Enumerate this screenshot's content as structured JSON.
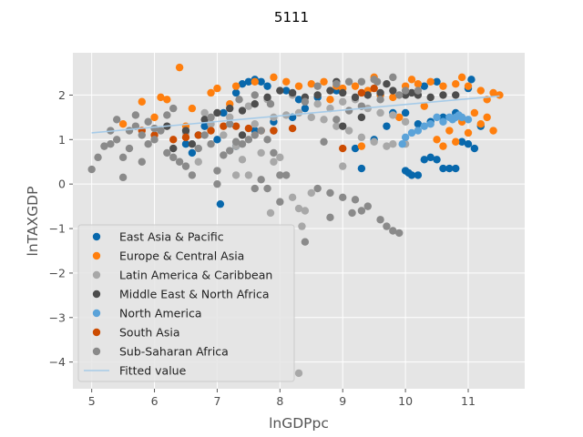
{
  "chart_data": {
    "type": "scatter",
    "title": "5111",
    "xlabel": "lnGDPpc",
    "ylabel": "lnTAXGDP",
    "xlim": [
      4.7,
      11.9
    ],
    "ylim": [
      -4.6,
      2.95
    ],
    "xticks": [
      5,
      6,
      7,
      8,
      9,
      10,
      11
    ],
    "yticks": [
      -4,
      -3,
      -2,
      -1,
      0,
      1,
      2
    ],
    "ytick_labels": [
      "−4",
      "−3",
      "−2",
      "−1",
      "0",
      "1",
      "2"
    ],
    "grid": true,
    "legend_position": "lower-left",
    "style": "ggplot",
    "series": [
      {
        "name": "East Asia & Pacific",
        "color": "#0868ac",
        "points": [
          [
            6.8,
            1.3
          ],
          [
            7.1,
            1.6
          ],
          [
            7.3,
            2.05
          ],
          [
            7.4,
            2.25
          ],
          [
            7.5,
            2.3
          ],
          [
            7.6,
            2.35
          ],
          [
            7.7,
            2.3
          ],
          [
            7.8,
            2.2
          ],
          [
            8.1,
            2.1
          ],
          [
            8.3,
            1.9
          ],
          [
            6.5,
            0.9
          ],
          [
            6.6,
            0.7
          ],
          [
            6.7,
            1.1
          ],
          [
            7.0,
            1.0
          ],
          [
            7.3,
            0.85
          ],
          [
            7.6,
            1.2
          ],
          [
            7.9,
            1.4
          ],
          [
            8.2,
            1.5
          ],
          [
            8.4,
            1.7
          ],
          [
            8.6,
            1.95
          ],
          [
            8.9,
            2.1
          ],
          [
            9.2,
            0.8
          ],
          [
            9.3,
            0.35
          ],
          [
            9.6,
            2.0
          ],
          [
            9.8,
            1.6
          ],
          [
            10.0,
            0.3
          ],
          [
            10.05,
            0.25
          ],
          [
            10.1,
            0.2
          ],
          [
            10.2,
            0.2
          ],
          [
            10.3,
            0.55
          ],
          [
            10.4,
            0.6
          ],
          [
            10.5,
            0.55
          ],
          [
            10.6,
            0.35
          ],
          [
            10.7,
            0.35
          ],
          [
            10.8,
            0.35
          ],
          [
            10.9,
            0.95
          ],
          [
            11.0,
            0.9
          ],
          [
            11.1,
            0.8
          ],
          [
            10.2,
            1.35
          ],
          [
            10.4,
            1.4
          ],
          [
            10.6,
            1.5
          ],
          [
            10.8,
            1.6
          ],
          [
            11.0,
            2.15
          ],
          [
            11.05,
            2.35
          ],
          [
            10.5,
            2.3
          ],
          [
            10.3,
            2.2
          ],
          [
            9.5,
            1.0
          ],
          [
            9.7,
            1.3
          ],
          [
            10.0,
            1.6
          ],
          [
            11.2,
            1.3
          ],
          [
            7.05,
            -0.45
          ]
        ]
      },
      {
        "name": "Europe & Central Asia",
        "color": "#ff7f0e",
        "points": [
          [
            5.5,
            1.35
          ],
          [
            5.8,
            1.85
          ],
          [
            6.0,
            1.5
          ],
          [
            6.1,
            1.95
          ],
          [
            6.2,
            1.9
          ],
          [
            6.4,
            2.62
          ],
          [
            6.5,
            1.3
          ],
          [
            6.6,
            1.7
          ],
          [
            6.9,
            2.05
          ],
          [
            7.0,
            2.15
          ],
          [
            7.3,
            2.2
          ],
          [
            7.6,
            2.3
          ],
          [
            7.9,
            2.4
          ],
          [
            8.1,
            2.3
          ],
          [
            8.3,
            2.2
          ],
          [
            8.5,
            2.25
          ],
          [
            8.7,
            2.3
          ],
          [
            8.9,
            2.2
          ],
          [
            9.0,
            2.15
          ],
          [
            9.2,
            2.2
          ],
          [
            9.4,
            2.1
          ],
          [
            9.6,
            2.0
          ],
          [
            9.8,
            1.95
          ],
          [
            10.0,
            2.2
          ],
          [
            10.2,
            2.25
          ],
          [
            10.4,
            2.3
          ],
          [
            10.6,
            2.2
          ],
          [
            10.8,
            2.25
          ],
          [
            11.0,
            2.2
          ],
          [
            11.2,
            2.1
          ],
          [
            11.4,
            2.05
          ],
          [
            11.5,
            2.0
          ],
          [
            11.3,
            1.9
          ],
          [
            11.1,
            1.6
          ],
          [
            10.9,
            1.4
          ],
          [
            10.7,
            1.2
          ],
          [
            10.5,
            1.0
          ],
          [
            10.6,
            0.85
          ],
          [
            10.8,
            0.95
          ],
          [
            11.0,
            1.15
          ],
          [
            11.2,
            1.35
          ],
          [
            11.4,
            1.2
          ],
          [
            11.3,
            1.5
          ],
          [
            9.3,
            0.85
          ],
          [
            9.9,
            1.5
          ],
          [
            10.3,
            1.75
          ],
          [
            8.8,
            1.9
          ],
          [
            9.5,
            2.4
          ],
          [
            10.1,
            2.35
          ],
          [
            10.9,
            2.4
          ],
          [
            7.2,
            1.8
          ]
        ]
      },
      {
        "name": "Latin America & Caribbean",
        "color": "#a8a8a8",
        "points": [
          [
            6.5,
            1.15
          ],
          [
            6.9,
            1.35
          ],
          [
            7.1,
            1.1
          ],
          [
            7.3,
            0.85
          ],
          [
            7.6,
            1.35
          ],
          [
            7.9,
            1.5
          ],
          [
            8.1,
            1.55
          ],
          [
            8.3,
            1.6
          ],
          [
            8.5,
            1.5
          ],
          [
            8.7,
            1.45
          ],
          [
            8.9,
            1.3
          ],
          [
            9.1,
            1.2
          ],
          [
            9.3,
            1.05
          ],
          [
            9.5,
            0.95
          ],
          [
            9.7,
            0.85
          ],
          [
            9.4,
            1.7
          ],
          [
            9.6,
            1.6
          ],
          [
            9.8,
            1.55
          ],
          [
            10.0,
            1.4
          ],
          [
            8.8,
            1.7
          ],
          [
            8.6,
            1.8
          ],
          [
            8.4,
            1.95
          ],
          [
            8.2,
            2.0
          ],
          [
            7.8,
            1.9
          ],
          [
            7.5,
            1.75
          ],
          [
            7.2,
            1.5
          ],
          [
            6.8,
            1.6
          ],
          [
            9.0,
            1.85
          ],
          [
            9.2,
            1.9
          ],
          [
            7.4,
            0.55
          ],
          [
            7.7,
            0.7
          ],
          [
            7.9,
            0.5
          ],
          [
            8.0,
            0.6
          ],
          [
            9.0,
            0.4
          ],
          [
            8.3,
            -0.55
          ],
          [
            8.4,
            -0.6
          ],
          [
            7.85,
            -0.65
          ],
          [
            8.35,
            -0.95
          ],
          [
            8.5,
            -0.2
          ],
          [
            8.2,
            -0.3
          ],
          [
            7.5,
            0.2
          ],
          [
            7.3,
            0.2
          ],
          [
            6.7,
            0.5
          ],
          [
            9.8,
            0.9
          ],
          [
            10.0,
            0.9
          ],
          [
            8.3,
            -4.25
          ]
        ]
      },
      {
        "name": "Middle East & North Africa",
        "color": "#4d4d4d",
        "points": [
          [
            6.2,
            1.3
          ],
          [
            6.5,
            1.2
          ],
          [
            6.8,
            1.45
          ],
          [
            7.0,
            1.6
          ],
          [
            7.2,
            1.7
          ],
          [
            7.4,
            1.65
          ],
          [
            7.6,
            1.8
          ],
          [
            7.8,
            1.95
          ],
          [
            8.0,
            2.1
          ],
          [
            8.2,
            2.05
          ],
          [
            8.4,
            1.95
          ],
          [
            8.6,
            2.0
          ],
          [
            8.8,
            2.1
          ],
          [
            9.0,
            2.05
          ],
          [
            9.2,
            1.95
          ],
          [
            9.4,
            2.0
          ],
          [
            9.6,
            2.05
          ],
          [
            9.8,
            2.1
          ],
          [
            10.0,
            2.0
          ],
          [
            10.2,
            2.0
          ],
          [
            10.4,
            1.95
          ],
          [
            10.6,
            2.0
          ],
          [
            10.8,
            2.0
          ],
          [
            9.0,
            1.3
          ],
          [
            9.3,
            1.5
          ],
          [
            7.9,
            1.2
          ],
          [
            7.4,
            1.1
          ],
          [
            6.6,
            0.9
          ],
          [
            6.3,
            0.8
          ],
          [
            8.9,
            2.3
          ],
          [
            9.7,
            2.25
          ],
          [
            10.1,
            2.05
          ]
        ]
      },
      {
        "name": "North America",
        "color": "#5ba3d9",
        "points": [
          [
            9.95,
            0.9
          ],
          [
            10.0,
            1.05
          ],
          [
            10.2,
            1.2
          ],
          [
            10.4,
            1.35
          ],
          [
            10.6,
            1.4
          ],
          [
            10.7,
            1.5
          ],
          [
            10.75,
            1.45
          ],
          [
            10.8,
            1.5
          ],
          [
            10.85,
            1.55
          ],
          [
            10.9,
            1.5
          ],
          [
            11.0,
            1.45
          ],
          [
            10.5,
            1.5
          ],
          [
            10.3,
            1.3
          ],
          [
            10.1,
            1.15
          ]
        ]
      },
      {
        "name": "South Asia",
        "color": "#cc4c02",
        "points": [
          [
            5.8,
            1.2
          ],
          [
            6.0,
            1.1
          ],
          [
            6.3,
            1.0
          ],
          [
            6.5,
            1.05
          ],
          [
            6.7,
            1.1
          ],
          [
            6.9,
            1.2
          ],
          [
            7.1,
            1.3
          ],
          [
            7.3,
            1.3
          ],
          [
            7.5,
            1.25
          ],
          [
            7.7,
            1.2
          ],
          [
            7.9,
            1.2
          ],
          [
            8.2,
            1.25
          ],
          [
            9.0,
            0.8
          ],
          [
            9.3,
            2.05
          ],
          [
            9.5,
            2.15
          ]
        ]
      },
      {
        "name": "Sub-Saharan Africa",
        "color": "#8a8a8a",
        "points": [
          [
            5.0,
            0.33
          ],
          [
            5.1,
            0.6
          ],
          [
            5.2,
            0.85
          ],
          [
            5.3,
            0.9
          ],
          [
            5.4,
            1.0
          ],
          [
            5.5,
            0.6
          ],
          [
            5.5,
            0.15
          ],
          [
            5.6,
            1.2
          ],
          [
            5.7,
            1.3
          ],
          [
            5.8,
            1.1
          ],
          [
            5.9,
            0.9
          ],
          [
            6.0,
            1.0
          ],
          [
            6.1,
            1.2
          ],
          [
            6.2,
            0.7
          ],
          [
            6.3,
            0.6
          ],
          [
            6.4,
            0.5
          ],
          [
            6.5,
            0.4
          ],
          [
            6.6,
            0.2
          ],
          [
            6.7,
            0.8
          ],
          [
            6.8,
            1.1
          ],
          [
            6.9,
            0.9
          ],
          [
            7.0,
            0.3
          ],
          [
            7.0,
            0.0
          ],
          [
            7.1,
            0.65
          ],
          [
            7.2,
            0.75
          ],
          [
            7.3,
            0.95
          ],
          [
            7.4,
            0.9
          ],
          [
            7.5,
            1.0
          ],
          [
            7.6,
            1.1
          ],
          [
            7.7,
            1.2
          ],
          [
            7.8,
            1.0
          ],
          [
            7.9,
            0.7
          ],
          [
            8.0,
            0.2
          ],
          [
            8.1,
            0.2
          ],
          [
            7.7,
            0.1
          ],
          [
            7.6,
            -0.1
          ],
          [
            7.8,
            -0.1
          ],
          [
            8.6,
            -0.1
          ],
          [
            8.8,
            -0.2
          ],
          [
            9.0,
            -0.3
          ],
          [
            9.2,
            -0.35
          ],
          [
            9.4,
            -0.5
          ],
          [
            9.6,
            -0.8
          ],
          [
            9.7,
            -0.95
          ],
          [
            9.8,
            -1.05
          ],
          [
            9.9,
            -1.1
          ],
          [
            9.3,
            -0.6
          ],
          [
            9.15,
            -0.65
          ],
          [
            8.8,
            -0.75
          ],
          [
            8.4,
            -1.3
          ],
          [
            8.0,
            -0.4
          ],
          [
            5.8,
            0.5
          ],
          [
            5.6,
            0.8
          ],
          [
            6.9,
            1.5
          ],
          [
            7.2,
            1.35
          ],
          [
            8.7,
            0.95
          ],
          [
            8.9,
            1.45
          ],
          [
            9.1,
            1.65
          ],
          [
            9.3,
            1.75
          ],
          [
            9.6,
            1.9
          ],
          [
            9.9,
            2.0
          ],
          [
            10.0,
            2.1
          ],
          [
            10.2,
            2.1
          ],
          [
            9.8,
            2.4
          ],
          [
            9.55,
            2.3
          ],
          [
            9.3,
            2.3
          ],
          [
            9.1,
            2.3
          ],
          [
            8.9,
            2.25
          ],
          [
            8.6,
            2.2
          ],
          [
            7.6,
            2.0
          ],
          [
            8.4,
            1.85
          ],
          [
            6.3,
            1.7
          ],
          [
            6.2,
            1.55
          ],
          [
            6.0,
            1.25
          ],
          [
            5.9,
            1.4
          ],
          [
            5.7,
            1.55
          ],
          [
            5.4,
            1.45
          ],
          [
            5.3,
            1.2
          ],
          [
            9.5,
            2.35
          ],
          [
            7.85,
            1.8
          ],
          [
            7.35,
            1.9
          ]
        ]
      }
    ],
    "fitted_line": {
      "name": "Fitted value",
      "color": "#a6cbe8",
      "x": [
        5.0,
        11.5
      ],
      "y": [
        1.15,
        1.98
      ]
    }
  }
}
